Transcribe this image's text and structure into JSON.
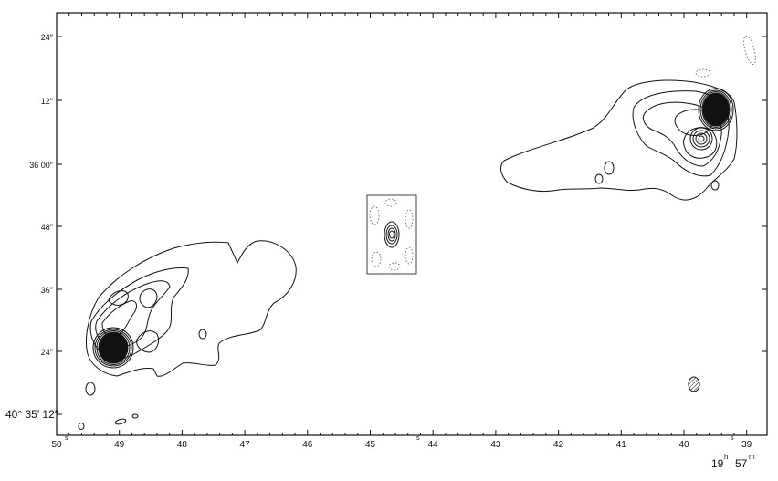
{
  "ra_axis": {
    "labels": [
      "50",
      "49",
      "48",
      "47",
      "46",
      "45",
      "44",
      "43",
      "42",
      "41",
      "40",
      "39"
    ],
    "sec_mark": "s",
    "hours_label": "19",
    "hours_mark": "h",
    "minutes_label": "57",
    "minutes_mark": "m"
  },
  "dec_axis": {
    "labels": [
      "24″",
      "12″",
      "36  00″",
      "48″",
      "36″",
      "24″"
    ],
    "bottom_label": "40° 35′ 12″"
  },
  "colors": {
    "ink": "#111111",
    "negative_contour": "#555555",
    "background": "#ffffff"
  },
  "features": [
    "frame",
    "contour-lobe-west",
    "contour-lobe-east",
    "hotspot-west",
    "hotspot-east",
    "core-inset",
    "beam-ellipse"
  ]
}
